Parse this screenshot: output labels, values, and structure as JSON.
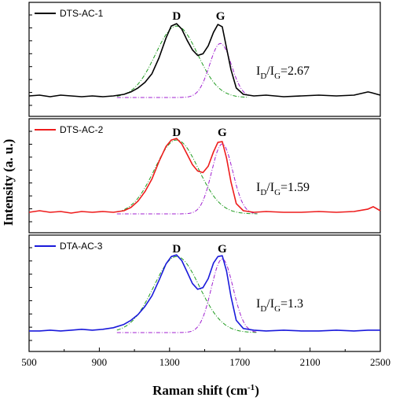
{
  "chart_data": {
    "type": "line",
    "xlabel_main": "Raman shift (cm",
    "xlabel_sup": "-1",
    "xlabel_end": ")",
    "ylabel": "Intensity (a. u.)",
    "xlim": [
      500,
      2500
    ],
    "xticks": [
      "500",
      "900",
      "1300",
      "1700",
      "2100",
      "2500"
    ],
    "grid": false,
    "panels": [
      {
        "legend": "DTS-AC-1",
        "color": "#000000",
        "ratio_label": "I_D/I_G=2.67",
        "ratio_value": "2.67",
        "peak_labels": [
          {
            "text": "D",
            "x": 1340
          },
          {
            "text": "G",
            "x": 1590
          }
        ],
        "spectrum": {
          "x": [
            500,
            560,
            620,
            680,
            740,
            800,
            860,
            920,
            980,
            1040,
            1080,
            1120,
            1160,
            1200,
            1240,
            1280,
            1310,
            1340,
            1370,
            1400,
            1430,
            1460,
            1490,
            1520,
            1550,
            1575,
            1600,
            1625,
            1650,
            1680,
            1720,
            1780,
            1850,
            1950,
            2050,
            2150,
            2250,
            2350,
            2430,
            2450,
            2500
          ],
          "y": [
            0.02,
            0.03,
            0.01,
            0.03,
            0.02,
            0.01,
            0.02,
            0.01,
            0.02,
            0.04,
            0.07,
            0.12,
            0.19,
            0.3,
            0.5,
            0.75,
            0.9,
            0.93,
            0.86,
            0.72,
            0.6,
            0.53,
            0.55,
            0.65,
            0.82,
            0.92,
            0.89,
            0.62,
            0.35,
            0.12,
            0.04,
            0.02,
            0.03,
            0.01,
            0.02,
            0.03,
            0.02,
            0.03,
            0.07,
            0.06,
            0.03
          ]
        },
        "d_fit": {
          "center": 1340,
          "width": 120,
          "amp": 0.9
        },
        "g_fit": {
          "center": 1590,
          "width": 62,
          "amp": 0.68
        },
        "fit_range": [
          1000,
          1750
        ]
      },
      {
        "legend": "DTS-AC-2",
        "color": "#ee1c1c",
        "ratio_label": "I_D/I_G=1.59",
        "ratio_value": "1.59",
        "peak_labels": [
          {
            "text": "D",
            "x": 1340
          },
          {
            "text": "G",
            "x": 1600
          }
        ],
        "spectrum": {
          "x": [
            500,
            560,
            620,
            680,
            740,
            800,
            860,
            920,
            980,
            1040,
            1080,
            1120,
            1160,
            1200,
            1240,
            1280,
            1310,
            1340,
            1370,
            1400,
            1430,
            1460,
            1490,
            1520,
            1550,
            1575,
            1600,
            1625,
            1650,
            1680,
            1720,
            1780,
            1850,
            1950,
            2050,
            2150,
            2250,
            2350,
            2430,
            2460,
            2500
          ],
          "y": [
            0.02,
            0.04,
            0.02,
            0.03,
            0.01,
            0.03,
            0.02,
            0.03,
            0.02,
            0.04,
            0.08,
            0.16,
            0.28,
            0.44,
            0.66,
            0.85,
            0.93,
            0.95,
            0.88,
            0.75,
            0.62,
            0.54,
            0.52,
            0.6,
            0.78,
            0.9,
            0.91,
            0.7,
            0.4,
            0.13,
            0.04,
            0.02,
            0.03,
            0.02,
            0.02,
            0.03,
            0.02,
            0.03,
            0.06,
            0.09,
            0.04
          ]
        },
        "d_fit": {
          "center": 1340,
          "width": 125,
          "amp": 0.93
        },
        "g_fit": {
          "center": 1600,
          "width": 60,
          "amp": 0.88
        },
        "fit_range": [
          1000,
          1800
        ]
      },
      {
        "legend": "DTA-AC-3",
        "color": "#1a1adb",
        "ratio_label": "I_D/I_G=1.3",
        "ratio_value": "1.3",
        "peak_labels": [
          {
            "text": "D",
            "x": 1340
          },
          {
            "text": "G",
            "x": 1600
          }
        ],
        "spectrum": {
          "x": [
            500,
            560,
            620,
            680,
            740,
            800,
            860,
            920,
            980,
            1040,
            1080,
            1120,
            1160,
            1200,
            1240,
            1280,
            1310,
            1340,
            1370,
            1400,
            1430,
            1460,
            1490,
            1520,
            1550,
            1575,
            1600,
            1625,
            1650,
            1680,
            1720,
            1780,
            1850,
            1950,
            2050,
            2150,
            2250,
            2350,
            2430,
            2500
          ],
          "y": [
            0.02,
            0.02,
            0.03,
            0.02,
            0.03,
            0.04,
            0.03,
            0.04,
            0.06,
            0.1,
            0.15,
            0.22,
            0.32,
            0.45,
            0.64,
            0.84,
            0.93,
            0.95,
            0.88,
            0.74,
            0.6,
            0.53,
            0.55,
            0.66,
            0.85,
            0.93,
            0.94,
            0.75,
            0.44,
            0.15,
            0.05,
            0.03,
            0.02,
            0.03,
            0.02,
            0.02,
            0.03,
            0.02,
            0.03,
            0.03
          ]
        },
        "d_fit": {
          "center": 1340,
          "width": 130,
          "amp": 0.93
        },
        "g_fit": {
          "center": 1600,
          "width": 62,
          "amp": 0.9
        },
        "fit_range": [
          1000,
          1800
        ]
      }
    ]
  }
}
